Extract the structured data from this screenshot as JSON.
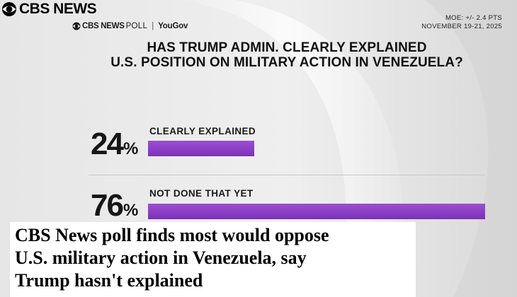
{
  "brand": {
    "logo_icon": "cbs-eye-icon",
    "name": "CBS NEWS"
  },
  "poll_header": {
    "cbs": "CBS NEWS",
    "poll": "POLL",
    "separator": "|",
    "partner": "YouGov"
  },
  "meta": {
    "moe": "MOE: +/- 2.4 PTS",
    "dates": "NOVEMBER 19-21, 2025"
  },
  "question": {
    "line1": "HAS TRUMP ADMIN. CLEARLY EXPLAINED",
    "line2": "U.S. POSITION ON MILITARY ACTION IN VENEZUELA?"
  },
  "chart_data": {
    "type": "bar",
    "orientation": "horizontal",
    "title": "HAS TRUMP ADMIN. CLEARLY EXPLAINED U.S. POSITION ON MILITARY ACTION IN VENEZUELA?",
    "categories": [
      "CLEARLY EXPLAINED",
      "NOT DONE THAT YET"
    ],
    "values": [
      24,
      76
    ],
    "value_labels": [
      "24",
      "76"
    ],
    "unit": "%",
    "bar_color": "#8a3dc4",
    "xlim": [
      0,
      76
    ],
    "grid": false
  },
  "headline": {
    "line1": "CBS News poll finds most would oppose",
    "line2": "U.S. military action in Venezuela, say",
    "line3": "Trump hasn't explained"
  },
  "colors": {
    "accent": "#8a3dc4",
    "text": "#161616",
    "background": "#e9e9e9"
  }
}
